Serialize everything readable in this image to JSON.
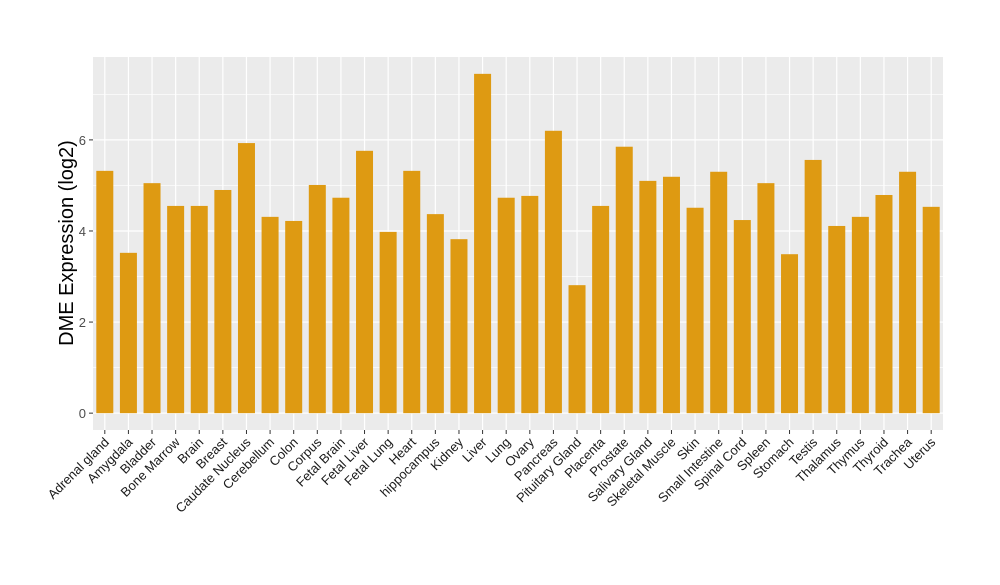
{
  "chart_data": {
    "type": "bar",
    "title": "",
    "xlabel": "",
    "ylabel": "DME Expression (log2)",
    "ylim": [
      -0.37,
      7.82
    ],
    "yticks": [
      0,
      2,
      4,
      6
    ],
    "grid": true,
    "bar_color": "#DE9A12",
    "panel_color": "#EBEBEB",
    "categories": [
      "Adrenal gland",
      "Amygdala",
      "Bladder",
      "Bone Marrow",
      "Brain",
      "Breast",
      "Caudate Nucleus",
      "Cerebellum",
      "Colon",
      "Corpus",
      "Fetal Brain",
      "Fetal Liver",
      "Fetal Lung",
      "Heart",
      "hippocampus",
      "Kidney",
      "Liver",
      "Lung",
      "Ovary",
      "Pancreas",
      "Pituitary Gland",
      "Placenta",
      "Prostate",
      "Salivary Gland",
      "Skeletal Muscle",
      "Skin",
      "Small Intestine",
      "Spinal Cord",
      "Spleen",
      "Stomach",
      "Testis",
      "Thalamus",
      "Thymus",
      "Thyroid",
      "Trachea",
      "Uterus"
    ],
    "values": [
      5.32,
      3.52,
      5.05,
      4.55,
      4.55,
      4.9,
      5.93,
      4.31,
      4.22,
      5.01,
      4.73,
      5.76,
      3.98,
      5.32,
      4.37,
      3.82,
      7.45,
      4.73,
      4.77,
      6.2,
      2.81,
      4.55,
      5.85,
      5.1,
      5.19,
      4.51,
      5.3,
      4.24,
      5.05,
      3.49,
      5.56,
      4.11,
      4.31,
      4.79,
      5.3,
      4.53
    ]
  }
}
